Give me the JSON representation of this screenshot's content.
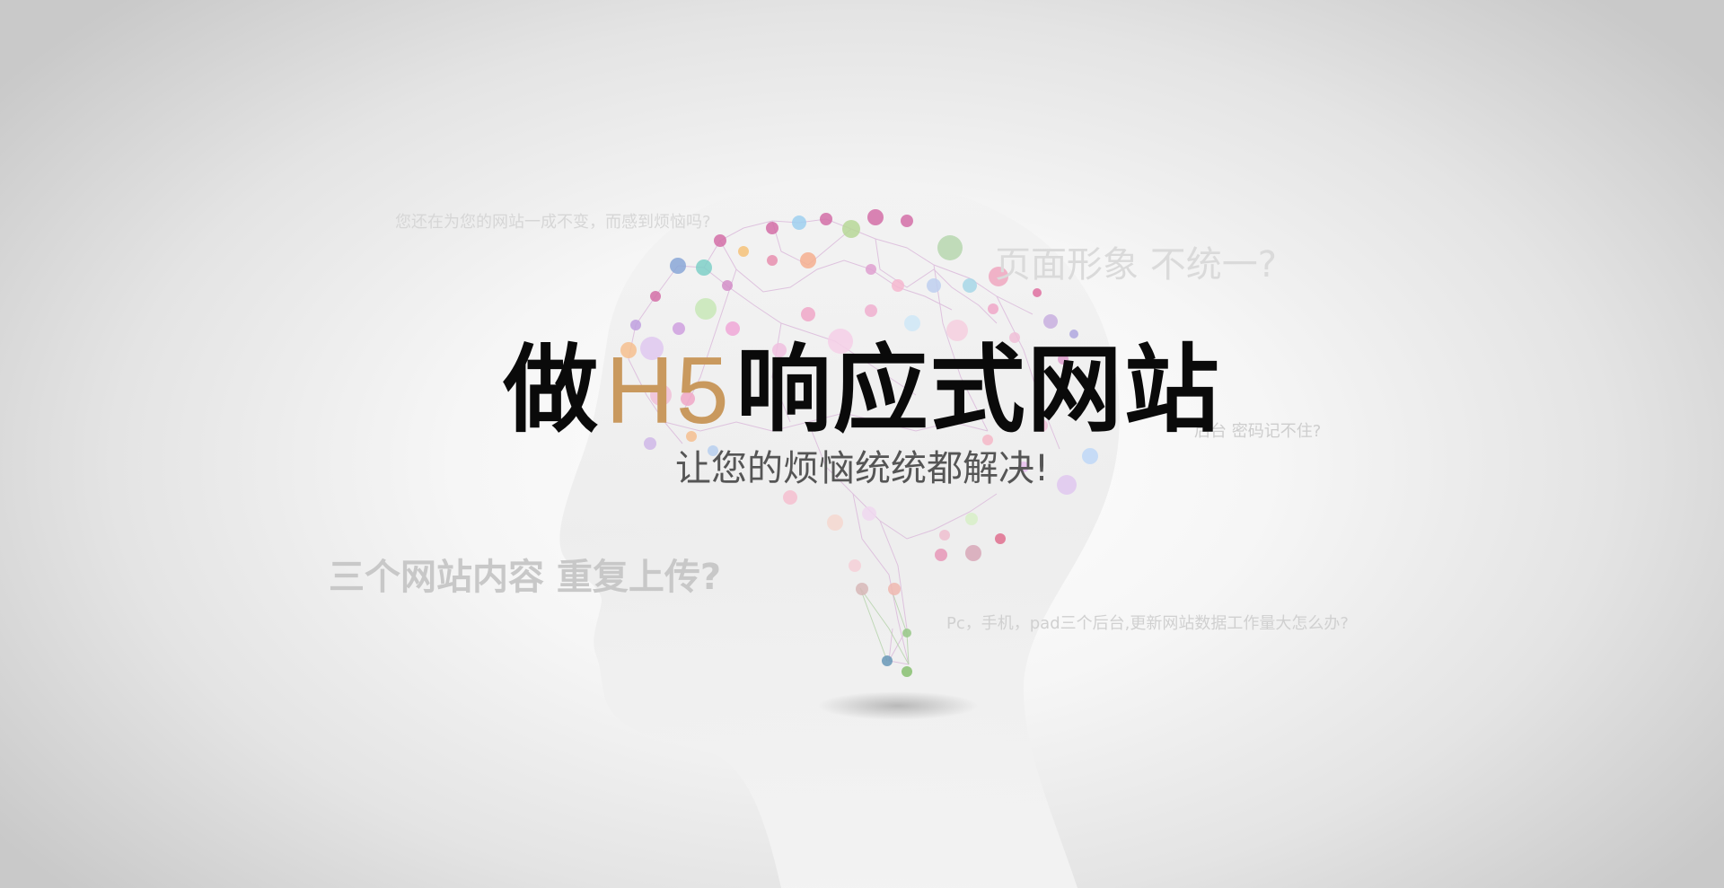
{
  "hero": {
    "headline_pre": "做",
    "headline_highlight": "H5",
    "headline_post": "响应式网站",
    "subline": "让您的烦恼统统都解决!",
    "highlight_color": "#c9995e"
  },
  "floating_questions": [
    "您还在为您的网站一成不变，而感到烦恼吗?",
    "页面形象  不统一?",
    "后台  密码记不住?",
    "三个网站内容  重复上传?",
    "Pc，手机，pad三个后台,更新网站数据工作量大怎么办?"
  ],
  "art": {
    "head_icon": "head-silhouette-icon",
    "brain_icon": "brain-network-icon"
  }
}
